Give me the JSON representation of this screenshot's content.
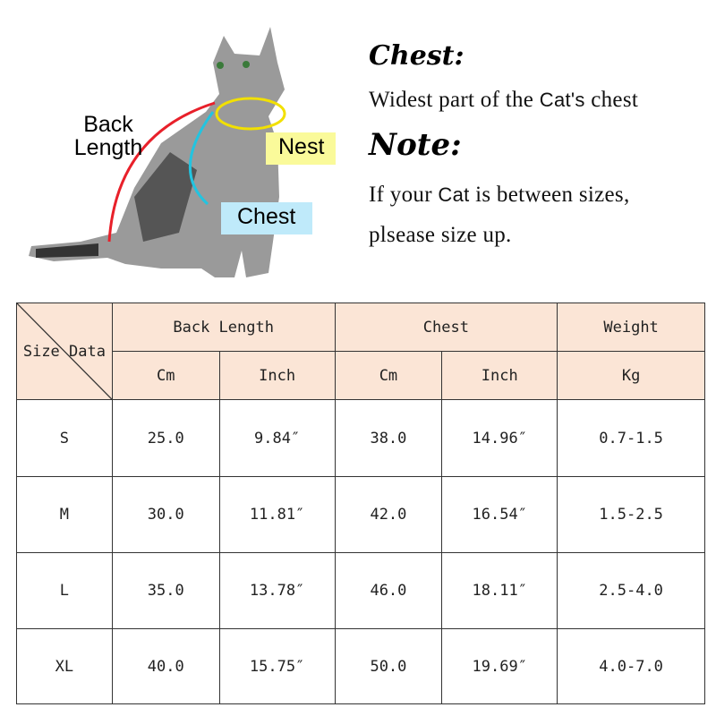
{
  "diagram": {
    "back_length_label": "Back Length",
    "neck_label": "Nest",
    "chest_label": "Chest",
    "colors": {
      "back": "#e8202a",
      "neck": "#f2e000",
      "chest": "#22c4e0",
      "neck_tag": "#fafa9a",
      "chest_tag": "#bfeafa"
    }
  },
  "info": {
    "chest_title": "Chest:",
    "chest_text_a": "Widest part of the ",
    "chest_text_b": "Cat's",
    "chest_text_c": " chest",
    "note_title": "Note:",
    "note_text_a": "If your ",
    "note_text_b": "Cat",
    "note_text_c": " is between sizes,",
    "note_text_d": "plsease size up."
  },
  "table": {
    "corner_size": "Size",
    "corner_data": "Data",
    "groups": [
      "Back Length",
      "Chest",
      "Weight"
    ],
    "units": [
      "Cm",
      "Inch",
      "Cm",
      "Inch",
      "Kg"
    ],
    "header_bg": "#fbe5d6",
    "rows": [
      [
        "S",
        "25.0",
        "9.84″",
        "38.0",
        "14.96″",
        "0.7-1.5"
      ],
      [
        "M",
        "30.0",
        "11.81″",
        "42.0",
        "16.54″",
        "1.5-2.5"
      ],
      [
        "L",
        "35.0",
        "13.78″",
        "46.0",
        "18.11″",
        "2.5-4.0"
      ],
      [
        "XL",
        "40.0",
        "15.75″",
        "50.0",
        "19.69″",
        "4.0-7.0"
      ]
    ]
  }
}
